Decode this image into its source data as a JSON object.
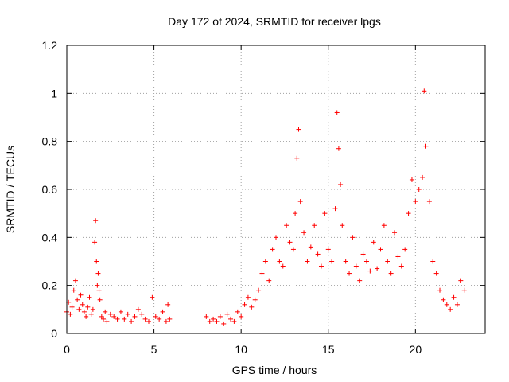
{
  "chart_data": {
    "type": "scatter",
    "title": "Day 172 of 2024, SRMTID for receiver lpgs",
    "xlabel": "GPS time / hours",
    "ylabel": "SRMTID / TECUs",
    "xlim": [
      0,
      24
    ],
    "ylim": [
      0,
      1.2
    ],
    "xticks": [
      0,
      5,
      10,
      15,
      20
    ],
    "xtick_labels": [
      "0",
      "5",
      "10",
      "15",
      "20"
    ],
    "yticks": [
      0,
      0.2,
      0.4,
      0.6,
      0.8,
      1.0,
      1.2
    ],
    "ytick_labels": [
      "0",
      "0.2",
      "0.4",
      "0.6",
      "0.8",
      "1",
      "1.2"
    ],
    "grid": true,
    "marker": "plus",
    "color": "#ff0000",
    "series": [
      {
        "name": "SRMTID",
        "x": [
          0.0,
          0.1,
          0.2,
          0.3,
          0.4,
          0.5,
          0.6,
          0.7,
          0.8,
          0.9,
          1.0,
          1.1,
          1.2,
          1.3,
          1.4,
          1.5,
          1.6,
          1.65,
          1.7,
          1.75,
          1.8,
          1.85,
          1.9,
          2.0,
          2.1,
          2.2,
          2.3,
          2.5,
          2.7,
          2.9,
          3.1,
          3.3,
          3.5,
          3.7,
          3.9,
          4.1,
          4.3,
          4.5,
          4.7,
          4.9,
          5.1,
          5.3,
          5.5,
          5.7,
          5.8,
          5.9,
          8.0,
          8.2,
          8.4,
          8.6,
          8.8,
          9.0,
          9.2,
          9.4,
          9.6,
          9.8,
          10.0,
          10.2,
          10.4,
          10.6,
          10.8,
          11.0,
          11.2,
          11.4,
          11.6,
          11.8,
          12.0,
          12.2,
          12.4,
          12.6,
          12.8,
          13.0,
          13.1,
          13.2,
          13.3,
          13.4,
          13.6,
          13.8,
          14.0,
          14.2,
          14.4,
          14.6,
          14.8,
          15.0,
          15.2,
          15.4,
          15.5,
          15.6,
          15.7,
          15.8,
          16.0,
          16.2,
          16.4,
          16.6,
          16.8,
          17.0,
          17.2,
          17.4,
          17.6,
          17.8,
          18.0,
          18.2,
          18.4,
          18.6,
          18.8,
          19.0,
          19.2,
          19.4,
          19.6,
          19.8,
          20.0,
          20.2,
          20.4,
          20.5,
          20.6,
          20.8,
          21.0,
          21.2,
          21.4,
          21.6,
          21.8,
          22.0,
          22.2,
          22.4,
          22.6,
          22.8
        ],
        "y": [
          0.09,
          0.13,
          0.08,
          0.11,
          0.18,
          0.22,
          0.14,
          0.1,
          0.16,
          0.12,
          0.09,
          0.07,
          0.11,
          0.15,
          0.08,
          0.1,
          0.38,
          0.47,
          0.3,
          0.2,
          0.25,
          0.18,
          0.14,
          0.07,
          0.06,
          0.09,
          0.05,
          0.08,
          0.07,
          0.06,
          0.09,
          0.06,
          0.08,
          0.05,
          0.07,
          0.1,
          0.08,
          0.06,
          0.05,
          0.15,
          0.07,
          0.06,
          0.09,
          0.05,
          0.12,
          0.06,
          0.07,
          0.05,
          0.06,
          0.05,
          0.07,
          0.04,
          0.08,
          0.06,
          0.05,
          0.09,
          0.07,
          0.12,
          0.15,
          0.11,
          0.14,
          0.18,
          0.25,
          0.3,
          0.22,
          0.35,
          0.4,
          0.3,
          0.28,
          0.45,
          0.38,
          0.35,
          0.5,
          0.73,
          0.85,
          0.55,
          0.42,
          0.3,
          0.36,
          0.45,
          0.33,
          0.28,
          0.5,
          0.35,
          0.3,
          0.52,
          0.92,
          0.77,
          0.62,
          0.45,
          0.3,
          0.25,
          0.4,
          0.28,
          0.22,
          0.33,
          0.3,
          0.26,
          0.38,
          0.27,
          0.35,
          0.45,
          0.3,
          0.25,
          0.42,
          0.32,
          0.28,
          0.35,
          0.5,
          0.64,
          0.55,
          0.6,
          0.65,
          1.01,
          0.78,
          0.55,
          0.3,
          0.25,
          0.18,
          0.14,
          0.12,
          0.1,
          0.15,
          0.12,
          0.22,
          0.18
        ]
      }
    ]
  }
}
